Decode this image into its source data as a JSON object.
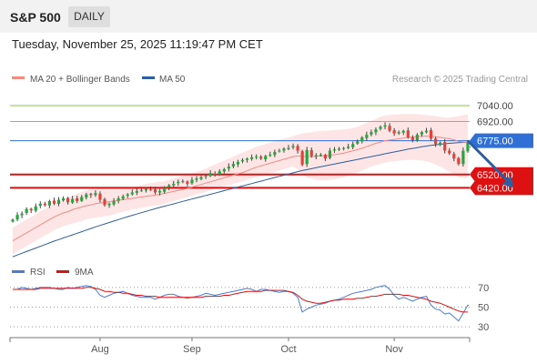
{
  "header": {
    "symbol": "S&P 500",
    "period_button": "DAILY",
    "datetime": "Tuesday, November 25, 2025 11:19:47 PM CET"
  },
  "credit": "Research © 2025 Trading Central",
  "colors": {
    "up": "#27a640",
    "down": "#e3413a",
    "ma20": "#f28b82",
    "bollinger_fill": "#fde0e0",
    "ma50": "#2d5d9f",
    "resistance": "#8bc34a",
    "pivot": "#2f6fd6",
    "support": "#dd1111",
    "rsi": "#4a7bd6",
    "rsi_ma": "#dd1111",
    "arrow": "#2d5d9f"
  },
  "chart_data": [
    {
      "type": "candlestick",
      "legend": [
        {
          "label": "MA 20 + Bollinger Bands",
          "color": "#f28b82"
        },
        {
          "label": "MA 50",
          "color": "#2d5d9f"
        }
      ],
      "ylim": [
        5880,
        7150
      ],
      "x_ticks": [
        {
          "label": "Aug",
          "index": 19
        },
        {
          "label": "Sep",
          "index": 39
        },
        {
          "label": "Oct",
          "index": 60
        },
        {
          "label": "Nov",
          "index": 83
        }
      ],
      "levels": [
        {
          "value": 7040,
          "label": "7040.00",
          "kind": "resistance"
        },
        {
          "value": 6920,
          "label": "6920.00",
          "kind": "resistance"
        },
        {
          "value": 6775,
          "label": "6775.00",
          "kind": "pivot"
        },
        {
          "value": 6520,
          "label": "6520.00",
          "kind": "support"
        },
        {
          "value": 6420,
          "label": "6420.00",
          "kind": "support"
        }
      ],
      "forecast_arrow": {
        "from_index": 99,
        "from_value": 6775,
        "to_index": 109,
        "to_value": 6420
      },
      "series_close": [
        6180,
        6215,
        6225,
        6260,
        6250,
        6280,
        6300,
        6290,
        6320,
        6300,
        6330,
        6340,
        6310,
        6335,
        6320,
        6350,
        6370,
        6365,
        6380,
        6330,
        6290,
        6300,
        6320,
        6340,
        6355,
        6370,
        6385,
        6395,
        6400,
        6410,
        6405,
        6385,
        6395,
        6420,
        6440,
        6450,
        6465,
        6470,
        6450,
        6480,
        6490,
        6500,
        6510,
        6530,
        6520,
        6545,
        6560,
        6580,
        6600,
        6615,
        6630,
        6640,
        6650,
        6655,
        6640,
        6660,
        6670,
        6690,
        6700,
        6715,
        6720,
        6735,
        6700,
        6595,
        6705,
        6660,
        6665,
        6670,
        6640,
        6700,
        6710,
        6715,
        6720,
        6730,
        6750,
        6770,
        6800,
        6820,
        6840,
        6860,
        6880,
        6890,
        6850,
        6830,
        6840,
        6850,
        6800,
        6780,
        6820,
        6840,
        6850,
        6790,
        6750,
        6760,
        6700,
        6680,
        6640,
        6600,
        6700,
        6760
      ],
      "ma20": [
        6020,
        6040,
        6060,
        6080,
        6100,
        6120,
        6140,
        6160,
        6180,
        6200,
        6215,
        6230,
        6240,
        6255,
        6265,
        6275,
        6285,
        6290,
        6300,
        6305,
        6310,
        6315,
        6320,
        6325,
        6330,
        6335,
        6340,
        6345,
        6350,
        6355,
        6360,
        6365,
        6370,
        6378,
        6385,
        6392,
        6400,
        6408,
        6415,
        6425,
        6435,
        6445,
        6455,
        6465,
        6475,
        6485,
        6495,
        6505,
        6515,
        6525,
        6535,
        6548,
        6562,
        6575,
        6585,
        6595,
        6605,
        6615,
        6625,
        6635,
        6645,
        6655,
        6660,
        6658,
        6655,
        6655,
        6657,
        6660,
        6662,
        6665,
        6670,
        6675,
        6682,
        6690,
        6698,
        6708,
        6718,
        6730,
        6742,
        6755,
        6765,
        6775,
        6780,
        6785,
        6790,
        6795,
        6800,
        6802,
        6805,
        6808,
        6810,
        6808,
        6805,
        6800,
        6795,
        6790,
        6782,
        6770,
        6765,
        6760
      ],
      "bb_upper": [
        6120,
        6140,
        6160,
        6180,
        6200,
        6220,
        6240,
        6260,
        6280,
        6300,
        6315,
        6330,
        6345,
        6360,
        6375,
        6390,
        6400,
        6410,
        6415,
        6420,
        6415,
        6410,
        6410,
        6412,
        6415,
        6420,
        6425,
        6430,
        6440,
        6450,
        6455,
        6460,
        6465,
        6470,
        6480,
        6490,
        6500,
        6510,
        6520,
        6530,
        6540,
        6550,
        6565,
        6580,
        6595,
        6610,
        6625,
        6640,
        6655,
        6670,
        6685,
        6700,
        6715,
        6730,
        6740,
        6750,
        6760,
        6770,
        6780,
        6790,
        6800,
        6810,
        6820,
        6830,
        6835,
        6840,
        6845,
        6848,
        6850,
        6852,
        6855,
        6858,
        6860,
        6865,
        6870,
        6880,
        6895,
        6910,
        6925,
        6940,
        6955,
        6965,
        6970,
        6972,
        6975,
        6977,
        6978,
        6977,
        6975,
        6972,
        6970,
        6965,
        6960,
        6955,
        6950,
        6950,
        6955,
        6960,
        6968,
        6975
      ],
      "bb_lower": [
        5920,
        5940,
        5960,
        5980,
        6000,
        6020,
        6040,
        6060,
        6080,
        6100,
        6115,
        6130,
        6140,
        6150,
        6160,
        6170,
        6180,
        6190,
        6195,
        6200,
        6205,
        6210,
        6220,
        6230,
        6240,
        6248,
        6255,
        6262,
        6268,
        6275,
        6280,
        6285,
        6290,
        6300,
        6310,
        6320,
        6330,
        6340,
        6350,
        6360,
        6370,
        6380,
        6390,
        6400,
        6410,
        6420,
        6430,
        6440,
        6450,
        6460,
        6470,
        6480,
        6490,
        6500,
        6510,
        6520,
        6530,
        6540,
        6550,
        6560,
        6570,
        6580,
        6560,
        6520,
        6500,
        6490,
        6480,
        6475,
        6475,
        6480,
        6485,
        6492,
        6500,
        6510,
        6520,
        6535,
        6550,
        6565,
        6580,
        6590,
        6600,
        6610,
        6615,
        6620,
        6625,
        6628,
        6630,
        6630,
        6628,
        6625,
        6620,
        6610,
        6595,
        6580,
        6560,
        6540,
        6520,
        6500,
        6495,
        6495
      ],
      "ma50": [
        5900,
        5913,
        5926,
        5939,
        5952,
        5965,
        5978,
        5991,
        6004,
        6017,
        6029,
        6041,
        6053,
        6065,
        6077,
        6089,
        6101,
        6113,
        6125,
        6136,
        6147,
        6158,
        6169,
        6180,
        6191,
        6202,
        6212,
        6222,
        6232,
        6242,
        6252,
        6262,
        6272,
        6281,
        6290,
        6299,
        6308,
        6317,
        6326,
        6335,
        6344,
        6353,
        6362,
        6371,
        6380,
        6389,
        6398,
        6407,
        6416,
        6425,
        6434,
        6443,
        6452,
        6461,
        6470,
        6479,
        6488,
        6497,
        6506,
        6515,
        6524,
        6533,
        6542,
        6550,
        6557,
        6564,
        6571,
        6578,
        6585,
        6592,
        6599,
        6606,
        6613,
        6620,
        6627,
        6634,
        6641,
        6648,
        6655,
        6662,
        6669,
        6676,
        6683,
        6690,
        6697,
        6704,
        6711,
        6717,
        6723,
        6729,
        6735,
        6740,
        6744,
        6748,
        6752,
        6755,
        6758,
        6760,
        6762,
        6764
      ]
    },
    {
      "type": "line",
      "legend": [
        {
          "label": "RSI",
          "color": "#4a7bd6"
        },
        {
          "label": "9MA",
          "color": "#dd1111"
        }
      ],
      "ylim": [
        20,
        80
      ],
      "y_ticks": [
        70,
        50,
        30
      ],
      "rsi": [
        68,
        68,
        70,
        69,
        68,
        69,
        70,
        70,
        70,
        69,
        68,
        68,
        70,
        69,
        70,
        71,
        72,
        71,
        68,
        62,
        60,
        62,
        64,
        65,
        66,
        64,
        62,
        61,
        60,
        60,
        60,
        58,
        60,
        62,
        63,
        63,
        61,
        60,
        59,
        60,
        61,
        62,
        64,
        63,
        62,
        63,
        64,
        65,
        66,
        67,
        68,
        69,
        68,
        66,
        68,
        68,
        67,
        66,
        65,
        66,
        66,
        64,
        60,
        45,
        48,
        50,
        52,
        53,
        54,
        56,
        57,
        58,
        60,
        62,
        64,
        65,
        66,
        67,
        68,
        70,
        71,
        72,
        68,
        62,
        58,
        60,
        58,
        56,
        58,
        60,
        61,
        52,
        48,
        47,
        43,
        44,
        40,
        36,
        44,
        52
      ],
      "rsi_ma": [
        68,
        68,
        68,
        68,
        68,
        68,
        69,
        69,
        69,
        69,
        69,
        69,
        69,
        69,
        69,
        69,
        70,
        70,
        69,
        68,
        66,
        66,
        65,
        65,
        64,
        64,
        63,
        62,
        62,
        61,
        61,
        61,
        60,
        60,
        60,
        60,
        60,
        60,
        60,
        60,
        60,
        60,
        61,
        61,
        61,
        61,
        62,
        62,
        63,
        64,
        65,
        66,
        66,
        66,
        66,
        67,
        67,
        67,
        67,
        67,
        66,
        65,
        62,
        58,
        56,
        55,
        54,
        54,
        55,
        56,
        57,
        57,
        58,
        58,
        58,
        59,
        59,
        60,
        61,
        61,
        62,
        63,
        63,
        63,
        63,
        62,
        62,
        61,
        60,
        59,
        58,
        56,
        55,
        54,
        52,
        50,
        48,
        46,
        45,
        45
      ]
    }
  ]
}
